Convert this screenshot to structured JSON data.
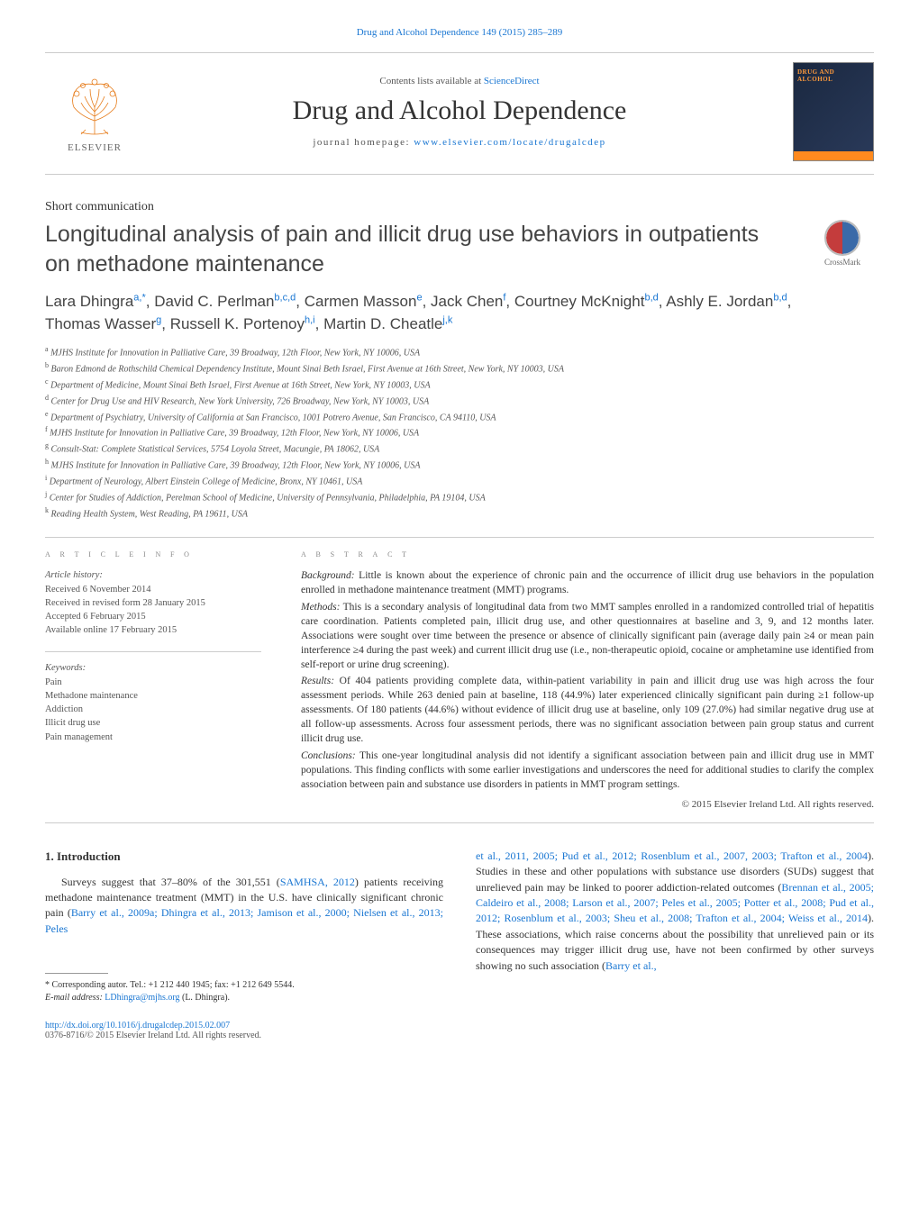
{
  "header": {
    "journal_ref": "Drug and Alcohol Dependence 149 (2015) 285–289",
    "contents_prefix": "Contents lists available at ",
    "contents_link": "ScienceDirect",
    "journal_name": "Drug and Alcohol Dependence",
    "homepage_prefix": "journal homepage: ",
    "homepage_url": "www.elsevier.com/locate/drugalcdep",
    "elsevier_label": "ELSEVIER",
    "cover_title": "DRUG AND ALCOHOL"
  },
  "article": {
    "type": "Short communication",
    "title": "Longitudinal analysis of pain and illicit drug use behaviors in outpatients on methadone maintenance",
    "crossmark_label": "CrossMark"
  },
  "authors": [
    {
      "name": "Lara Dhingra",
      "sup": "a,*"
    },
    {
      "name": "David C. Perlman",
      "sup": "b,c,d"
    },
    {
      "name": "Carmen Masson",
      "sup": "e"
    },
    {
      "name": "Jack Chen",
      "sup": "f"
    },
    {
      "name": "Courtney McKnight",
      "sup": "b,d"
    },
    {
      "name": "Ashly E. Jordan",
      "sup": "b,d"
    },
    {
      "name": "Thomas Wasser",
      "sup": "g"
    },
    {
      "name": "Russell K. Portenoy",
      "sup": "h,i"
    },
    {
      "name": "Martin D. Cheatle",
      "sup": "j,k"
    }
  ],
  "affiliations": [
    {
      "sup": "a",
      "text": "MJHS Institute for Innovation in Palliative Care, 39 Broadway, 12th Floor, New York, NY 10006, USA"
    },
    {
      "sup": "b",
      "text": "Baron Edmond de Rothschild Chemical Dependency Institute, Mount Sinai Beth Israel, First Avenue at 16th Street, New York, NY 10003, USA"
    },
    {
      "sup": "c",
      "text": "Department of Medicine, Mount Sinai Beth Israel, First Avenue at 16th Street, New York, NY 10003, USA"
    },
    {
      "sup": "d",
      "text": "Center for Drug Use and HIV Research, New York University, 726 Broadway, New York, NY 10003, USA"
    },
    {
      "sup": "e",
      "text": "Department of Psychiatry, University of California at San Francisco, 1001 Potrero Avenue, San Francisco, CA 94110, USA"
    },
    {
      "sup": "f",
      "text": "MJHS Institute for Innovation in Palliative Care, 39 Broadway, 12th Floor, New York, NY 10006, USA"
    },
    {
      "sup": "g",
      "text": "Consult-Stat: Complete Statistical Services, 5754 Loyola Street, Macungie, PA 18062, USA"
    },
    {
      "sup": "h",
      "text": "MJHS Institute for Innovation in Palliative Care, 39 Broadway, 12th Floor, New York, NY 10006, USA"
    },
    {
      "sup": "i",
      "text": "Department of Neurology, Albert Einstein College of Medicine, Bronx, NY 10461, USA"
    },
    {
      "sup": "j",
      "text": "Center for Studies of Addiction, Perelman School of Medicine, University of Pennsylvania, Philadelphia, PA 19104, USA"
    },
    {
      "sup": "k",
      "text": "Reading Health System, West Reading, PA 19611, USA"
    }
  ],
  "info": {
    "heading": "a r t i c l e   i n f o",
    "history_label": "Article history:",
    "history": [
      "Received 6 November 2014",
      "Received in revised form 28 January 2015",
      "Accepted 6 February 2015",
      "Available online 17 February 2015"
    ],
    "keywords_label": "Keywords:",
    "keywords": [
      "Pain",
      "Methadone maintenance",
      "Addiction",
      "Illicit drug use",
      "Pain management"
    ]
  },
  "abstract": {
    "heading": "a b s t r a c t",
    "background_label": "Background:",
    "background": " Little is known about the experience of chronic pain and the occurrence of illicit drug use behaviors in the population enrolled in methadone maintenance treatment (MMT) programs.",
    "methods_label": "Methods:",
    "methods": " This is a secondary analysis of longitudinal data from two MMT samples enrolled in a randomized controlled trial of hepatitis care coordination. Patients completed pain, illicit drug use, and other questionnaires at baseline and 3, 9, and 12 months later. Associations were sought over time between the presence or absence of clinically significant pain (average daily pain ≥4 or mean pain interference ≥4 during the past week) and current illicit drug use (i.e., non-therapeutic opioid, cocaine or amphetamine use identified from self-report or urine drug screening).",
    "results_label": "Results:",
    "results": " Of 404 patients providing complete data, within-patient variability in pain and illicit drug use was high across the four assessment periods. While 263 denied pain at baseline, 118 (44.9%) later experienced clinically significant pain during ≥1 follow-up assessments. Of 180 patients (44.6%) without evidence of illicit drug use at baseline, only 109 (27.0%) had similar negative drug use at all follow-up assessments. Across four assessment periods, there was no significant association between pain group status and current illicit drug use.",
    "conclusions_label": "Conclusions:",
    "conclusions": " This one-year longitudinal analysis did not identify a significant association between pain and illicit drug use in MMT populations. This finding conflicts with some earlier investigations and underscores the need for additional studies to clarify the complex association between pain and substance use disorders in patients in MMT program settings.",
    "copyright": "© 2015 Elsevier Ireland Ltd. All rights reserved."
  },
  "body": {
    "intro_heading": "1.  Introduction",
    "col1_p1_a": "Surveys suggest that 37–80% of the 301,551 (",
    "col1_p1_link1": "SAMHSA, 2012",
    "col1_p1_b": ") patients receiving methadone maintenance treatment (MMT) in the U.S. have clinically significant chronic pain (",
    "col1_p1_link2": "Barry et al., 2009a; Dhingra et al., 2013; Jamison et al., 2000; Nielsen et al., 2013; Peles",
    "col2_p1_link1": "et al., 2011, 2005; Pud et al., 2012; Rosenblum et al., 2007, 2003; Trafton et al., 2004",
    "col2_p1_a": "). Studies in these and other populations with substance use disorders (SUDs) suggest that unrelieved pain may be linked to poorer addiction-related outcomes (",
    "col2_p1_link2": "Brennan et al., 2005; Caldeiro et al., 2008; Larson et al., 2007; Peles et al., 2005; Potter et al., 2008; Pud et al., 2012; Rosenblum et al., 2003; Sheu et al., 2008; Trafton et al., 2004; Weiss et al., 2014",
    "col2_p1_b": "). These associations, which raise concerns about the possibility that unrelieved pain or its consequences may trigger illicit drug use, have not been confirmed by other surveys showing no such association (",
    "col2_p1_link3": "Barry et al.,"
  },
  "footnotes": {
    "corr_label": "* Corresponding autor. Tel.: +1 212 440 1945; fax: +1 212 649 5544.",
    "email_label": "E-mail address: ",
    "email": "LDhingra@mjhs.org",
    "email_suffix": " (L. Dhingra)."
  },
  "footer": {
    "doi": "http://dx.doi.org/10.1016/j.drugalcdep.2015.02.007",
    "copy": "0376-8716/© 2015 Elsevier Ireland Ltd. All rights reserved."
  },
  "styling": {
    "link_color": "#1976d2",
    "text_color": "#333333",
    "muted_color": "#555555",
    "rule_color": "#cccccc",
    "background": "#ffffff",
    "title_fontsize": 25,
    "journal_name_fontsize": 30,
    "body_fontsize": 12,
    "abstract_fontsize": 11.5,
    "cover_bg_gradient": [
      "#1a2840",
      "#2a3a5a"
    ],
    "cover_accent": "#ff8a1f"
  }
}
